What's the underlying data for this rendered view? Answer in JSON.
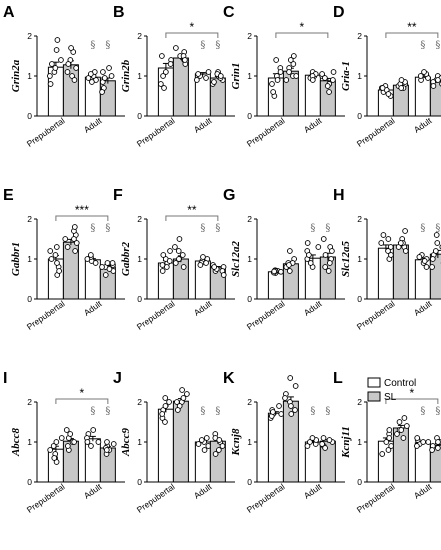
{
  "colors": {
    "control": "#ffffff",
    "sl": "#c8c8c8",
    "stroke": "#000000",
    "section_mark": "#777777"
  },
  "legend": {
    "items": [
      {
        "label": "Control"
      },
      {
        "label": "SL"
      }
    ]
  },
  "chart_data": [
    {
      "type": "bar",
      "panel": "A",
      "ylabel": "Grin2a",
      "categories": [
        "Prepubertal",
        "Adult"
      ],
      "ylim": [
        0,
        2
      ],
      "yticks": [
        "0",
        "1",
        "2"
      ],
      "series": [
        {
          "name": "Control",
          "values": [
            1.22,
            0.97
          ],
          "points": [
            [
              1.0,
              1.4,
              0.8,
              1.65,
              1.1,
              1.2,
              1.9,
              1.3
            ],
            [
              0.9,
              1.0,
              1.1,
              0.85,
              0.95,
              1.05
            ]
          ]
        },
        {
          "name": "SL",
          "values": [
            1.28,
            0.88
          ],
          "points": [
            [
              1.0,
              1.2,
              1.4,
              1.1,
              1.6,
              0.9,
              1.3,
              1.7
            ],
            [
              0.7,
              0.9,
              1.0,
              0.6,
              1.1,
              0.85,
              1.2,
              0.95
            ]
          ]
        }
      ],
      "significance": [],
      "section_marks": [
        {
          "group": 1,
          "series": 0
        },
        {
          "group": 1,
          "series": 1
        }
      ]
    },
    {
      "type": "bar",
      "panel": "B",
      "ylabel": "Grin2b",
      "categories": [
        "Prepubertal",
        "Adult"
      ],
      "ylim": [
        0,
        2
      ],
      "yticks": [
        "0",
        "1",
        "2"
      ],
      "series": [
        {
          "name": "Control",
          "values": [
            1.2,
            1.05
          ],
          "points": [
            [
              1.0,
              1.4,
              0.8,
              1.5,
              1.1,
              1.3,
              0.7
            ],
            [
              1.0,
              0.95,
              1.1,
              1.05,
              0.9
            ]
          ]
        },
        {
          "name": "SL",
          "values": [
            1.45,
            0.95
          ],
          "points": [
            [
              1.5,
              1.6,
              1.4,
              1.3,
              1.7,
              1.5,
              1.4
            ],
            [
              0.9,
              1.0,
              0.8,
              1.1,
              0.85,
              1.05,
              0.95,
              1.0
            ]
          ]
        }
      ],
      "significance": [
        {
          "label": "*",
          "from": [
            0,
            0
          ],
          "to": [
            1,
            1
          ]
        }
      ],
      "section_marks": [
        {
          "group": 1,
          "series": 0
        },
        {
          "group": 1,
          "series": 1
        }
      ]
    },
    {
      "type": "bar",
      "panel": "C",
      "ylabel": "Grin1",
      "categories": [
        "Prepubertal",
        "Adult"
      ],
      "ylim": [
        0,
        2
      ],
      "yticks": [
        "0",
        "1",
        "2"
      ],
      "series": [
        {
          "name": "Control",
          "values": [
            0.95,
            1.02
          ],
          "points": [
            [
              1.0,
              0.8,
              1.4,
              0.5,
              1.2,
              0.9,
              0.6,
              1.1
            ],
            [
              1.0,
              1.1,
              0.95,
              1.05,
              1.0,
              0.9
            ]
          ]
        },
        {
          "name": "SL",
          "values": [
            1.12,
            0.88
          ],
          "points": [
            [
              1.0,
              1.3,
              1.4,
              0.9,
              1.2,
              1.1,
              1.5,
              1.0
            ],
            [
              0.8,
              1.0,
              0.6,
              1.1,
              0.9,
              0.75,
              1.05,
              0.95
            ]
          ]
        }
      ],
      "significance": [
        {
          "label": "*",
          "from": [
            0,
            0
          ],
          "to": [
            1,
            1
          ]
        }
      ],
      "section_marks": []
    },
    {
      "type": "bar",
      "panel": "D",
      "ylabel": "Gria-1",
      "categories": [
        "Prepubertal",
        "Adult"
      ],
      "ylim": [
        0,
        2
      ],
      "yticks": [
        "0",
        "1",
        "2"
      ],
      "series": [
        {
          "name": "Control",
          "values": [
            0.65,
            0.97
          ],
          "points": [
            [
              0.7,
              0.6,
              0.5,
              0.75,
              0.65,
              0.55,
              0.7
            ],
            [
              1.0,
              0.95,
              1.05,
              0.9,
              1.1,
              1.0
            ]
          ]
        },
        {
          "name": "SL",
          "values": [
            0.77,
            0.87
          ],
          "points": [
            [
              0.8,
              0.7,
              0.75,
              0.85,
              0.8,
              0.7,
              0.9
            ],
            [
              0.9,
              0.8,
              1.0,
              0.85,
              0.95,
              0.75,
              0.9
            ]
          ]
        }
      ],
      "significance": [
        {
          "label": "**",
          "from": [
            0,
            0
          ],
          "to": [
            1,
            1
          ]
        }
      ],
      "section_marks": [
        {
          "group": 1,
          "series": 0
        },
        {
          "group": 1,
          "series": 1
        }
      ]
    },
    {
      "type": "bar",
      "panel": "E",
      "ylabel": "Gabbr1",
      "categories": [
        "Prepubertal",
        "Adult"
      ],
      "ylim": [
        0,
        2
      ],
      "yticks": [
        "0",
        "1",
        "2"
      ],
      "series": [
        {
          "name": "Control",
          "values": [
            1.0,
            0.98
          ],
          "points": [
            [
              1.0,
              0.8,
              1.3,
              0.6,
              1.1,
              0.9,
              1.2,
              0.7
            ],
            [
              1.0,
              0.95,
              1.05,
              0.9,
              1.0,
              1.1
            ]
          ]
        },
        {
          "name": "SL",
          "values": [
            1.42,
            0.8
          ],
          "points": [
            [
              1.3,
              1.6,
              1.5,
              1.2,
              1.7,
              1.4,
              1.8,
              1.5
            ],
            [
              0.8,
              0.7,
              0.9,
              0.75,
              0.85,
              0.6,
              0.9,
              0.8
            ]
          ]
        }
      ],
      "significance": [
        {
          "label": "***",
          "from": [
            0,
            0
          ],
          "to": [
            1,
            1
          ]
        }
      ],
      "section_marks": [
        {
          "group": 1,
          "series": 0
        },
        {
          "group": 1,
          "series": 1
        }
      ]
    },
    {
      "type": "bar",
      "panel": "F",
      "ylabel": "Gabbr2",
      "categories": [
        "Prepubertal",
        "Adult"
      ],
      "ylim": [
        0,
        2
      ],
      "yticks": [
        "0",
        "1",
        "2"
      ],
      "series": [
        {
          "name": "Control",
          "values": [
            0.9,
            0.95
          ],
          "points": [
            [
              0.9,
              0.8,
              1.0,
              0.7,
              1.1,
              0.85,
              0.95,
              1.2
            ],
            [
              0.95,
              1.0,
              0.9,
              1.05,
              0.9,
              0.85
            ]
          ]
        },
        {
          "name": "SL",
          "values": [
            1.0,
            0.78
          ],
          "points": [
            [
              1.0,
              1.2,
              0.9,
              1.3,
              1.1,
              0.8,
              1.0,
              1.5
            ],
            [
              0.8,
              0.7,
              0.75,
              0.85,
              0.7,
              0.8,
              0.6
            ]
          ]
        }
      ],
      "significance": [
        {
          "label": "**",
          "from": [
            0,
            0
          ],
          "to": [
            1,
            1
          ]
        }
      ],
      "section_marks": [
        {
          "group": 1,
          "series": 0
        },
        {
          "group": 1,
          "series": 1
        }
      ]
    },
    {
      "type": "bar",
      "panel": "G",
      "ylabel": "Slc12a2",
      "categories": [
        "Prepubertal",
        "Adult"
      ],
      "ylim": [
        0,
        2
      ],
      "yticks": [
        "0",
        "1",
        "2"
      ],
      "series": [
        {
          "name": "Control",
          "values": [
            0.68,
            1.02
          ],
          "points": [
            [
              0.7,
              0.65,
              0.72,
              0.68,
              0.66,
              0.7,
              0.69
            ],
            [
              1.0,
              1.2,
              0.8,
              1.4,
              0.9,
              1.1,
              1.3
            ]
          ]
        },
        {
          "name": "SL",
          "values": [
            0.88,
            1.05
          ],
          "points": [
            [
              0.9,
              0.8,
              1.0,
              1.2,
              0.7,
              0.9,
              0.85
            ],
            [
              1.0,
              1.3,
              0.8,
              1.5,
              0.9,
              1.1,
              0.7,
              1.2
            ]
          ]
        }
      ],
      "significance": [],
      "section_marks": [
        {
          "group": 1,
          "series": 0
        },
        {
          "group": 1,
          "series": 1
        }
      ]
    },
    {
      "type": "bar",
      "panel": "H",
      "ylabel": "Slc12a5",
      "categories": [
        "Prepubertal",
        "Adult"
      ],
      "ylim": [
        0,
        2
      ],
      "yticks": [
        "0",
        "1",
        "2"
      ],
      "series": [
        {
          "name": "Control",
          "values": [
            1.27,
            0.98
          ],
          "points": [
            [
              1.3,
              1.5,
              1.0,
              1.6,
              1.2,
              1.1,
              1.4
            ],
            [
              1.0,
              0.9,
              1.1,
              0.8,
              1.05,
              0.95
            ]
          ]
        },
        {
          "name": "SL",
          "values": [
            1.35,
            1.12
          ],
          "points": [
            [
              1.3,
              1.5,
              1.4,
              1.2,
              1.7,
              1.3,
              1.4
            ],
            [
              1.1,
              1.3,
              0.9,
              1.6,
              1.0,
              1.2,
              0.8,
              1.4
            ]
          ]
        }
      ],
      "significance": [],
      "section_marks": [
        {
          "group": 1,
          "series": 0
        },
        {
          "group": 1,
          "series": 1
        }
      ]
    },
    {
      "type": "bar",
      "panel": "I",
      "ylabel": "Abcc8",
      "categories": [
        "Prepubertal",
        "Adult"
      ],
      "ylim": [
        0,
        2
      ],
      "yticks": [
        "0",
        "1",
        "2"
      ],
      "series": [
        {
          "name": "Control",
          "values": [
            0.82,
            1.08
          ],
          "points": [
            [
              0.8,
              0.6,
              1.1,
              0.5,
              0.9,
              0.7,
              1.0,
              0.6
            ],
            [
              1.0,
              1.2,
              1.1,
              0.9,
              1.3,
              1.0
            ]
          ]
        },
        {
          "name": "SL",
          "values": [
            1.02,
            0.85
          ],
          "points": [
            [
              1.0,
              1.3,
              1.1,
              0.8,
              1.2,
              0.9,
              1.0
            ],
            [
              0.9,
              0.8,
              1.0,
              0.7,
              0.85,
              0.95,
              0.8
            ]
          ]
        }
      ],
      "significance": [
        {
          "label": "*",
          "from": [
            0,
            0
          ],
          "to": [
            1,
            1
          ]
        }
      ],
      "section_marks": [
        {
          "group": 1,
          "series": 0
        },
        {
          "group": 1,
          "series": 1
        }
      ]
    },
    {
      "type": "bar",
      "panel": "J",
      "ylabel": "Abcc9",
      "categories": [
        "Prepubertal",
        "Adult"
      ],
      "ylim": [
        0,
        2
      ],
      "yticks": [
        "0",
        "1",
        "2"
      ],
      "series": [
        {
          "name": "Control",
          "values": [
            1.82,
            1.0
          ],
          "points": [
            [
              1.8,
              1.6,
              2.0,
              1.7,
              1.9,
              1.5,
              2.1
            ],
            [
              1.0,
              0.9,
              1.1,
              0.8,
              1.05,
              0.95
            ]
          ]
        },
        {
          "name": "SL",
          "values": [
            2.02,
            1.02
          ],
          "points": [
            [
              2.0,
              2.2,
              1.9,
              2.3,
              2.1,
              1.8,
              2.0
            ],
            [
              1.0,
              1.2,
              0.8,
              1.1,
              0.9,
              1.05,
              0.7
            ]
          ]
        }
      ],
      "significance": [],
      "section_marks": [
        {
          "group": 1,
          "series": 0
        },
        {
          "group": 1,
          "series": 1
        }
      ]
    },
    {
      "type": "bar",
      "panel": "K",
      "ylabel": "Kcnj8",
      "categories": [
        "Prepubertal",
        "Adult"
      ],
      "ylim": [
        0,
        2
      ],
      "yticks": [
        "0",
        "1",
        "2"
      ],
      "series": [
        {
          "name": "Control",
          "values": [
            1.72,
            1.0
          ],
          "points": [
            [
              1.7,
              1.8,
              1.6,
              1.9,
              1.7,
              1.65,
              1.75
            ],
            [
              1.0,
              0.95,
              1.05,
              0.9,
              1.0,
              1.1
            ]
          ]
        },
        {
          "name": "SL",
          "values": [
            2.02,
            1.02
          ],
          "points": [
            [
              2.0,
              2.4,
              1.8,
              2.2,
              1.9,
              2.1,
              1.7,
              2.6
            ],
            [
              1.0,
              0.9,
              1.1,
              0.95,
              1.05,
              0.85
            ]
          ]
        }
      ],
      "significance": [],
      "section_marks": [
        {
          "group": 1,
          "series": 0
        },
        {
          "group": 1,
          "series": 1
        }
      ]
    },
    {
      "type": "bar",
      "panel": "L",
      "ylabel": "Kcnj11",
      "categories": [
        "Prepubertal",
        "Adult"
      ],
      "ylim": [
        0,
        2
      ],
      "yticks": [
        "0",
        "1",
        "2"
      ],
      "series": [
        {
          "name": "Control",
          "values": [
            1.02,
            0.98
          ],
          "points": [
            [
              1.0,
              0.8,
              1.2,
              0.9,
              1.1,
              0.7,
              1.3
            ],
            [
              1.0,
              0.95,
              1.05,
              0.9,
              1.0,
              1.1
            ]
          ]
        },
        {
          "name": "SL",
          "values": [
            1.35,
            0.92
          ],
          "points": [
            [
              1.3,
              1.5,
              1.2,
              1.4,
              1.6,
              1.3,
              1.1
            ],
            [
              0.9,
              1.0,
              0.8,
              1.1,
              0.95,
              0.85,
              1.0
            ]
          ]
        }
      ],
      "significance": [
        {
          "label": "*",
          "from": [
            0,
            0
          ],
          "to": [
            1,
            1
          ]
        }
      ],
      "section_marks": [
        {
          "group": 1,
          "series": 0
        },
        {
          "group": 1,
          "series": 1
        }
      ]
    }
  ]
}
